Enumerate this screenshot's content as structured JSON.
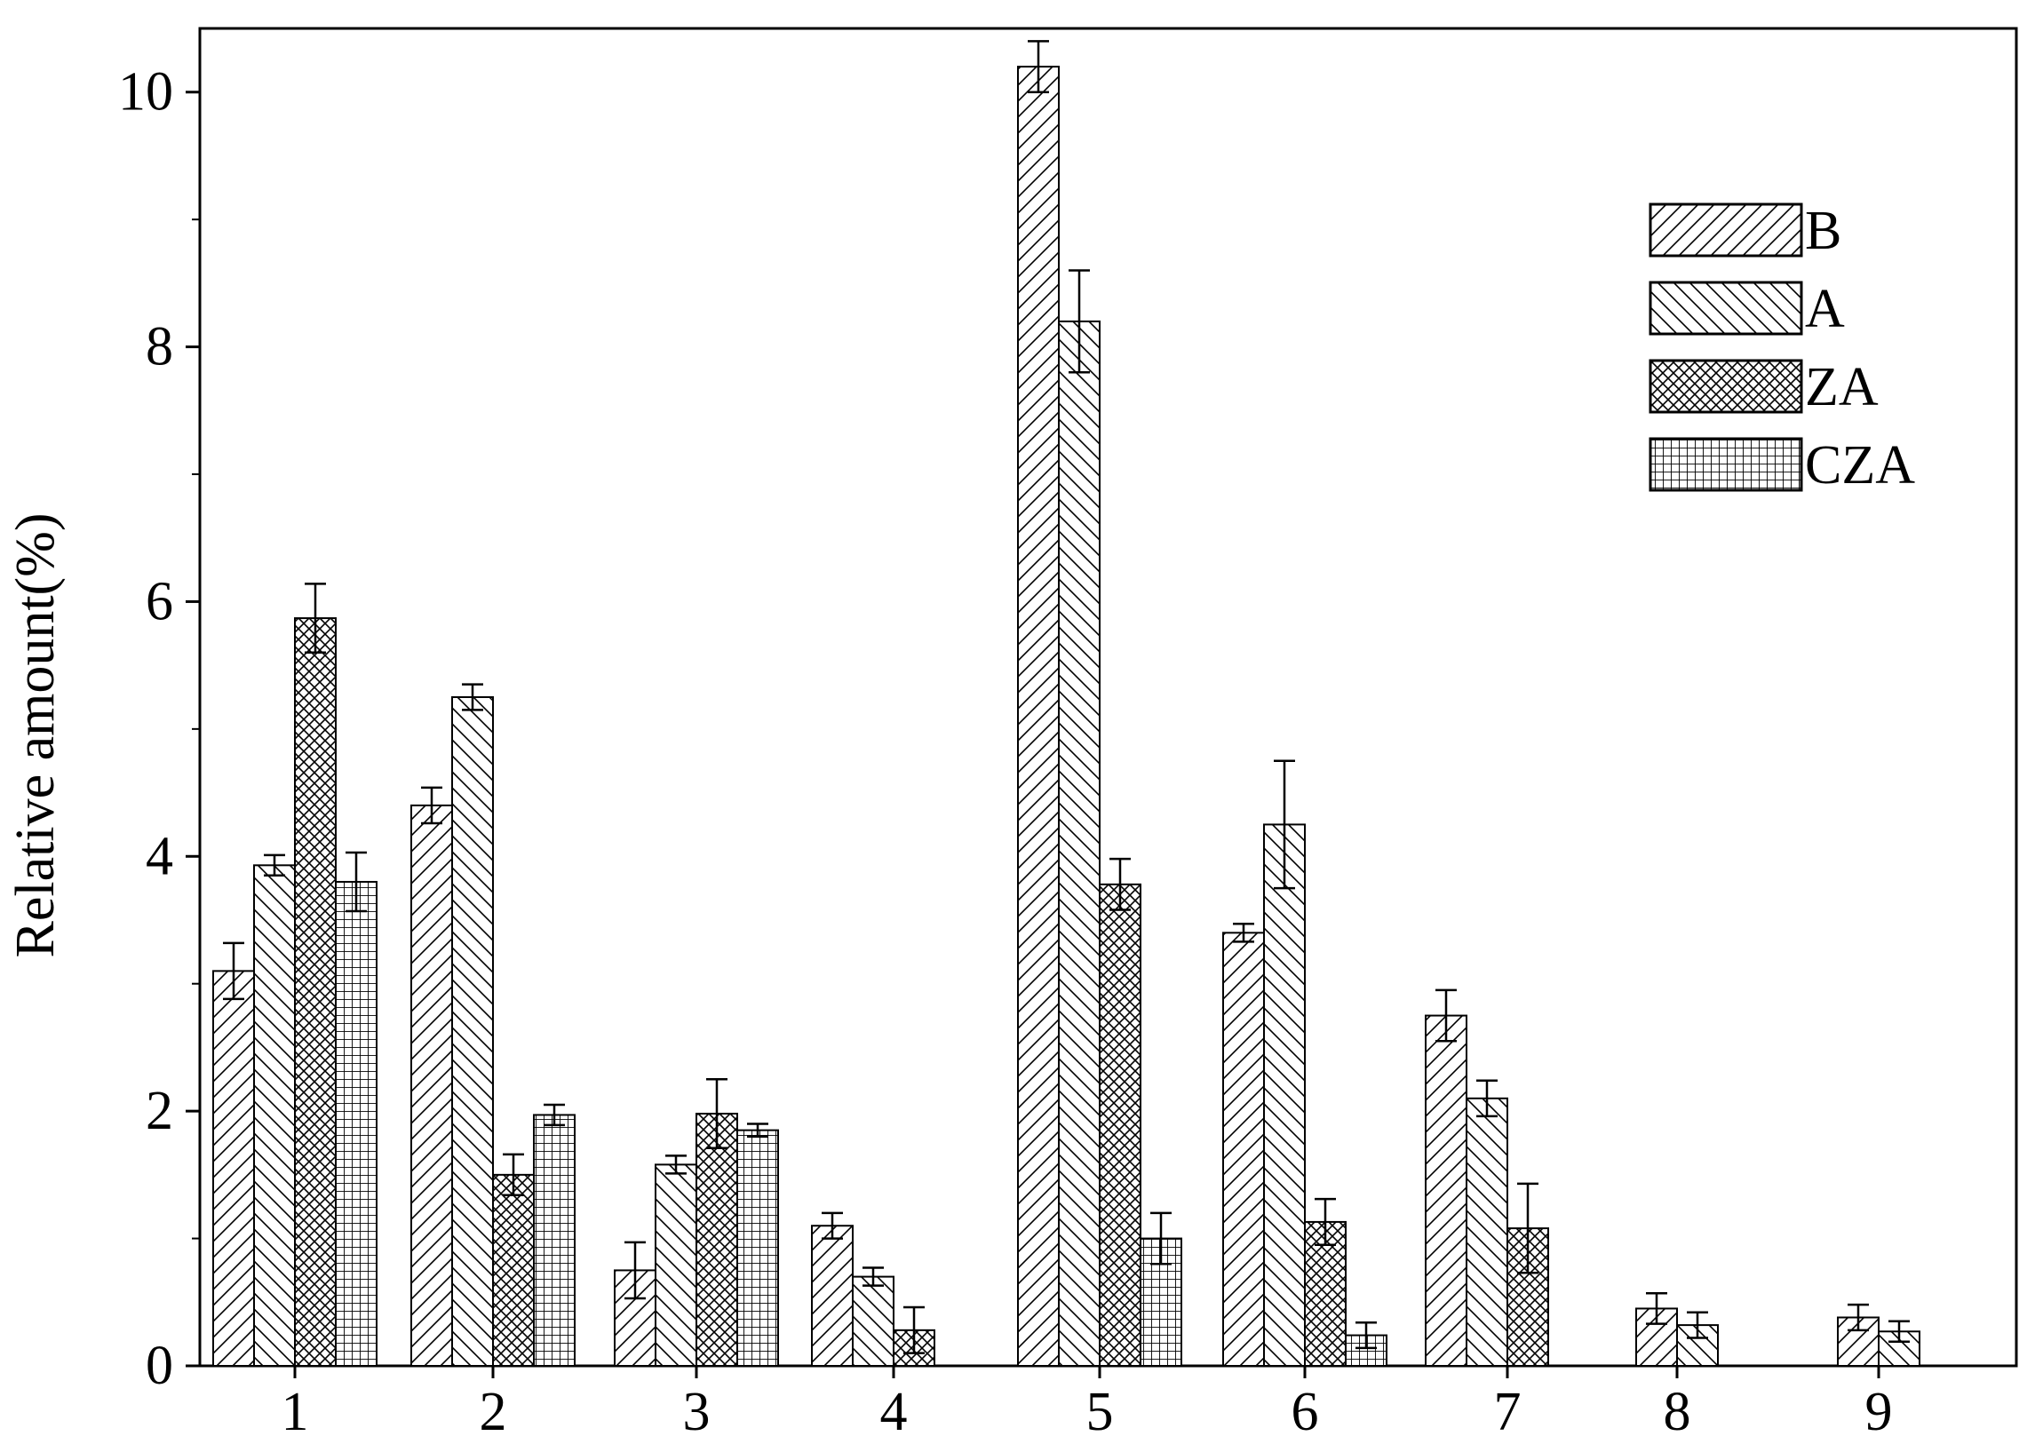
{
  "chart_data": {
    "type": "bar",
    "title": "",
    "xlabel": "",
    "ylabel": "Relative amount(%)",
    "categories": [
      "1",
      "2",
      "3",
      "4",
      "5",
      "6",
      "7",
      "8",
      "9"
    ],
    "ylim": [
      0,
      10.5
    ],
    "yticks": [
      0,
      2,
      4,
      6,
      8,
      10
    ],
    "grid": false,
    "legend_position": "top-right",
    "series": [
      {
        "name": "B",
        "pattern": "diagonal-up",
        "values": [
          3.1,
          4.4,
          0.75,
          1.1,
          10.2,
          3.4,
          2.75,
          0.45,
          0.38
        ],
        "errors": [
          0.22,
          0.14,
          0.22,
          0.1,
          0.2,
          0.07,
          0.2,
          0.12,
          0.1
        ]
      },
      {
        "name": "A",
        "pattern": "diagonal-down",
        "values": [
          3.93,
          5.25,
          1.58,
          0.7,
          8.2,
          4.25,
          2.1,
          0.32,
          0.27
        ],
        "errors": [
          0.08,
          0.1,
          0.07,
          0.07,
          0.4,
          0.5,
          0.14,
          0.1,
          0.08
        ]
      },
      {
        "name": "ZA",
        "pattern": "crosshatch-diagonal",
        "values": [
          5.87,
          1.5,
          1.98,
          0.28,
          3.78,
          1.13,
          1.08,
          null,
          null
        ],
        "errors": [
          0.27,
          0.16,
          0.27,
          0.18,
          0.2,
          0.18,
          0.35,
          null,
          null
        ]
      },
      {
        "name": "CZA",
        "pattern": "grid",
        "values": [
          3.8,
          1.97,
          1.85,
          null,
          1.0,
          0.24,
          null,
          null,
          null
        ],
        "errors": [
          0.23,
          0.08,
          0.05,
          null,
          0.2,
          0.1,
          null,
          null,
          null
        ]
      }
    ]
  }
}
